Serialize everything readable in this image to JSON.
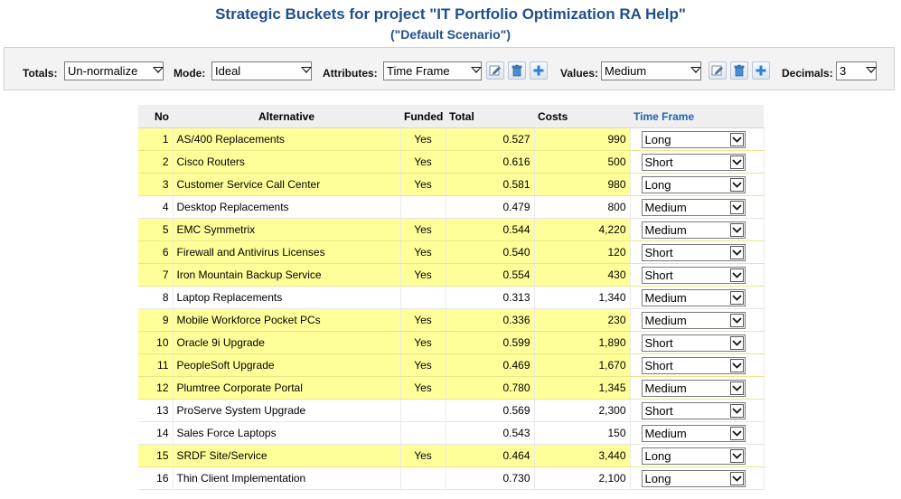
{
  "header": {
    "title": "Strategic Buckets for project \"IT Portfolio Optimization RA Help\"",
    "subtitle": "(\"Default Scenario\")"
  },
  "toolbar": {
    "totals_label": "Totals:",
    "totals_value": "Un-normalize",
    "mode_label": "Mode:",
    "mode_value": "Ideal",
    "attributes_label": "Attributes:",
    "attributes_value": "Time Frame",
    "values_label": "Values:",
    "values_value": "Medium",
    "decimals_label": "Decimals:",
    "decimals_value": "3"
  },
  "colors": {
    "title": "#1f4f8f",
    "funded_row": "#ffff99",
    "header_bg": "#efefef",
    "link_header": "#1f63b5"
  },
  "table": {
    "columns": {
      "no": "No",
      "alternative": "Alternative",
      "funded": "Funded",
      "total": "Total",
      "costs": "Costs",
      "time_frame": "Time Frame"
    },
    "rows": [
      {
        "no": "1",
        "alternative": "AS/400 Replacements",
        "funded": "Yes",
        "total": "0.527",
        "costs": "990",
        "time_frame": "Long"
      },
      {
        "no": "2",
        "alternative": "Cisco Routers",
        "funded": "Yes",
        "total": "0.616",
        "costs": "500",
        "time_frame": "Short"
      },
      {
        "no": "3",
        "alternative": "Customer Service Call Center",
        "funded": "Yes",
        "total": "0.581",
        "costs": "980",
        "time_frame": "Long"
      },
      {
        "no": "4",
        "alternative": "Desktop Replacements",
        "funded": "",
        "total": "0.479",
        "costs": "800",
        "time_frame": "Medium"
      },
      {
        "no": "5",
        "alternative": "EMC Symmetrix",
        "funded": "Yes",
        "total": "0.544",
        "costs": "4,220",
        "time_frame": "Medium"
      },
      {
        "no": "6",
        "alternative": "Firewall and Antivirus Licenses",
        "funded": "Yes",
        "total": "0.540",
        "costs": "120",
        "time_frame": "Short"
      },
      {
        "no": "7",
        "alternative": "Iron Mountain Backup Service",
        "funded": "Yes",
        "total": "0.554",
        "costs": "430",
        "time_frame": "Short"
      },
      {
        "no": "8",
        "alternative": "Laptop Replacements",
        "funded": "",
        "total": "0.313",
        "costs": "1,340",
        "time_frame": "Medium"
      },
      {
        "no": "9",
        "alternative": "Mobile Workforce Pocket PCs",
        "funded": "Yes",
        "total": "0.336",
        "costs": "230",
        "time_frame": "Medium"
      },
      {
        "no": "10",
        "alternative": "Oracle 9i Upgrade",
        "funded": "Yes",
        "total": "0.599",
        "costs": "1,890",
        "time_frame": "Short"
      },
      {
        "no": "11",
        "alternative": "PeopleSoft Upgrade",
        "funded": "Yes",
        "total": "0.469",
        "costs": "1,670",
        "time_frame": "Short"
      },
      {
        "no": "12",
        "alternative": "Plumtree Corporate Portal",
        "funded": "Yes",
        "total": "0.780",
        "costs": "1,345",
        "time_frame": "Medium"
      },
      {
        "no": "13",
        "alternative": "ProServe System Upgrade",
        "funded": "",
        "total": "0.569",
        "costs": "2,300",
        "time_frame": "Short"
      },
      {
        "no": "14",
        "alternative": "Sales Force Laptops",
        "funded": "",
        "total": "0.543",
        "costs": "150",
        "time_frame": "Medium"
      },
      {
        "no": "15",
        "alternative": "SRDF Site/Service",
        "funded": "Yes",
        "total": "0.464",
        "costs": "3,440",
        "time_frame": "Long"
      },
      {
        "no": "16",
        "alternative": "Thin Client Implementation",
        "funded": "",
        "total": "0.730",
        "costs": "2,100",
        "time_frame": "Long"
      }
    ]
  }
}
